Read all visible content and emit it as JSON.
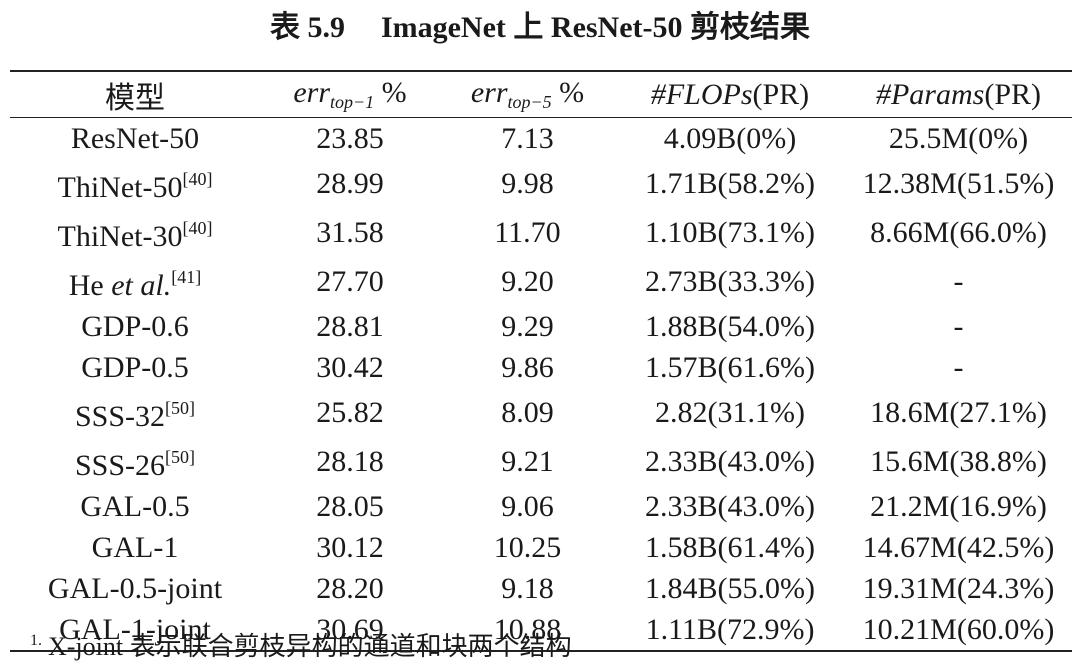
{
  "title": {
    "label": "表 5.9",
    "text": "ImageNet 上 ResNet-50 剪枝结果"
  },
  "table": {
    "header": [
      [
        {
          "text": "模型"
        }
      ],
      [
        {
          "text": "err",
          "style": "italic"
        },
        {
          "text": "top−1",
          "style": "sub"
        },
        {
          "text": " %"
        }
      ],
      [
        {
          "text": "err",
          "style": "italic"
        },
        {
          "text": "top−5",
          "style": "sub"
        },
        {
          "text": " %"
        }
      ],
      [
        {
          "text": "#FLOPs",
          "style": "italic"
        },
        {
          "text": "(PR)"
        }
      ],
      [
        {
          "text": "#Params",
          "style": "italic"
        },
        {
          "text": "(PR)"
        }
      ]
    ],
    "rows": [
      {
        "model": [
          {
            "text": "ResNet-50"
          }
        ],
        "cells": [
          "23.85",
          "7.13",
          "4.09B(0%)",
          "25.5M(0%)"
        ]
      },
      {
        "model": [
          {
            "text": "ThiNet-50"
          },
          {
            "text": "[40]",
            "style": "sup"
          }
        ],
        "cells": [
          "28.99",
          "9.98",
          "1.71B(58.2%)",
          "12.38M(51.5%)"
        ]
      },
      {
        "model": [
          {
            "text": "ThiNet-30"
          },
          {
            "text": "[40]",
            "style": "sup"
          }
        ],
        "cells": [
          "31.58",
          "11.70",
          "1.10B(73.1%)",
          "8.66M(66.0%)"
        ]
      },
      {
        "model": [
          {
            "text": "He "
          },
          {
            "text": "et al.",
            "style": "italic"
          },
          {
            "text": "[41]",
            "style": "sup"
          }
        ],
        "cells": [
          "27.70",
          "9.20",
          "2.73B(33.3%)",
          "-"
        ]
      },
      {
        "model": [
          {
            "text": "GDP-0.6"
          }
        ],
        "cells": [
          "28.81",
          "9.29",
          "1.88B(54.0%)",
          "-"
        ]
      },
      {
        "model": [
          {
            "text": "GDP-0.5"
          }
        ],
        "cells": [
          "30.42",
          "9.86",
          "1.57B(61.6%)",
          "-"
        ]
      },
      {
        "model": [
          {
            "text": "SSS-32"
          },
          {
            "text": "[50]",
            "style": "sup"
          }
        ],
        "cells": [
          "25.82",
          "8.09",
          "2.82(31.1%)",
          "18.6M(27.1%)"
        ]
      },
      {
        "model": [
          {
            "text": "SSS-26"
          },
          {
            "text": "[50]",
            "style": "sup"
          }
        ],
        "cells": [
          "28.18",
          "9.21",
          "2.33B(43.0%)",
          "15.6M(38.8%)"
        ]
      },
      {
        "model": [
          {
            "text": "GAL-0.5"
          }
        ],
        "cells": [
          "28.05",
          "9.06",
          "2.33B(43.0%)",
          "21.2M(16.9%)"
        ]
      },
      {
        "model": [
          {
            "text": "GAL-1"
          }
        ],
        "cells": [
          "30.12",
          "10.25",
          "1.58B(61.4%)",
          "14.67M(42.5%)"
        ]
      },
      {
        "model": [
          {
            "text": "GAL-0.5-joint"
          }
        ],
        "cells": [
          "28.20",
          "9.18",
          "1.84B(55.0%)",
          "19.31M(24.3%)"
        ]
      },
      {
        "model": [
          {
            "text": "GAL-1-joint"
          }
        ],
        "cells": [
          "30.69",
          "10.88",
          "1.11B(72.9%)",
          "10.21M(60.0%)"
        ]
      }
    ]
  },
  "footnote": {
    "mark": "1.",
    "text": "X-joint 表示联合剪枝异构的通道和块两个结构"
  }
}
